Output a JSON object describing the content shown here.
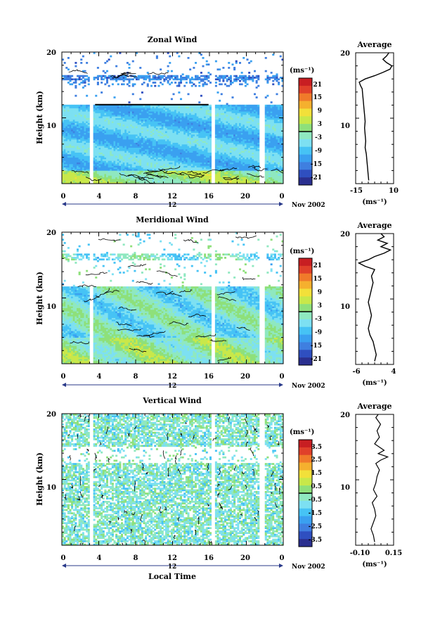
{
  "chart_data": [
    {
      "type": "heatmap",
      "title": "Zonal Wind",
      "ylabel": "Height (km)",
      "xlim": [
        0,
        24
      ],
      "ylim": [
        0,
        20
      ],
      "x_ticks": [
        "0",
        "4",
        "8",
        "12",
        "16",
        "20",
        "0"
      ],
      "y_ticks": [
        "20",
        "10"
      ],
      "date_label": "12",
      "month_label": "Nov 2002",
      "colorbar": {
        "unit": "(ms⁻¹)",
        "ticks": [
          "21",
          "15",
          "9",
          "3",
          "-3",
          "-9",
          "-15",
          "-21"
        ],
        "range": [
          -24,
          24
        ]
      },
      "average": {
        "title": "Average",
        "xlabel": "(ms⁻¹)",
        "x_ticks": [
          "-15",
          "10"
        ],
        "xlim": [
          -20,
          12
        ],
        "y_ticks": [
          "20",
          "10"
        ],
        "profile": [
          [
            -9,
            0.5
          ],
          [
            -9.5,
            1.5
          ],
          [
            -10,
            2.5
          ],
          [
            -10.5,
            3.5
          ],
          [
            -11,
            4.5
          ],
          [
            -12,
            5.5
          ],
          [
            -11.5,
            6.5
          ],
          [
            -12,
            7.5
          ],
          [
            -12.5,
            8.5
          ],
          [
            -12,
            9.5
          ],
          [
            -12.5,
            10.5
          ],
          [
            -13,
            11.5
          ],
          [
            -13.5,
            12.5
          ],
          [
            -14,
            13.5
          ],
          [
            -14.5,
            14.5
          ],
          [
            -16,
            15
          ],
          [
            -17,
            15.5
          ],
          [
            -12,
            16
          ],
          [
            -4,
            16.5
          ],
          [
            3,
            17
          ],
          [
            9,
            17.5
          ],
          [
            10.5,
            18
          ],
          [
            6,
            18.5
          ],
          [
            3,
            19
          ],
          [
            6,
            19.5
          ],
          [
            8,
            20
          ]
        ]
      }
    },
    {
      "type": "heatmap",
      "title": "Meridional Wind",
      "ylabel": "Height (km)",
      "xlim": [
        0,
        24
      ],
      "ylim": [
        0,
        20
      ],
      "x_ticks": [
        "0",
        "4",
        "8",
        "12",
        "16",
        "20",
        "0"
      ],
      "y_ticks": [
        "20",
        "10"
      ],
      "date_label": "12",
      "month_label": "Nov 2002",
      "colorbar": {
        "unit": "(ms⁻¹)",
        "ticks": [
          "21",
          "15",
          "9",
          "3",
          "-3",
          "-9",
          "-15",
          "-21"
        ],
        "range": [
          -24,
          24
        ]
      },
      "average": {
        "title": "Average",
        "xlabel": "(ms⁻¹)",
        "x_ticks": [
          "-6",
          "4"
        ],
        "xlim": [
          -7,
          5
        ],
        "y_ticks": [
          "20",
          "10"
        ],
        "profile": [
          [
            -1,
            0.5
          ],
          [
            -0.5,
            1.5
          ],
          [
            -1,
            2.5
          ],
          [
            -1.5,
            3.5
          ],
          [
            -2.5,
            4.5
          ],
          [
            -3,
            5.5
          ],
          [
            -2.5,
            6.5
          ],
          [
            -2,
            7.5
          ],
          [
            -2.5,
            8.5
          ],
          [
            -3,
            9.5
          ],
          [
            -2.5,
            10.5
          ],
          [
            -2,
            11.5
          ],
          [
            -1.5,
            12.5
          ],
          [
            -2,
            13.5
          ],
          [
            -1,
            14.5
          ],
          [
            -4,
            15
          ],
          [
            -6,
            15.5
          ],
          [
            -3,
            16
          ],
          [
            -1,
            16.5
          ],
          [
            2,
            17
          ],
          [
            4,
            17.5
          ],
          [
            1,
            18
          ],
          [
            3,
            18.5
          ],
          [
            0,
            19
          ],
          [
            2,
            19.5
          ],
          [
            1,
            20
          ]
        ]
      }
    },
    {
      "type": "heatmap",
      "title": "Vertical Wind",
      "ylabel": "Height (km)",
      "xlabel": "Local Time",
      "xlim": [
        0,
        24
      ],
      "ylim": [
        0,
        20
      ],
      "x_ticks": [
        "0",
        "4",
        "8",
        "12",
        "16",
        "20",
        "0"
      ],
      "y_ticks": [
        "20",
        "10"
      ],
      "date_label": "12",
      "month_label": "Nov 2002",
      "colorbar": {
        "unit": "(ms⁻¹)",
        "ticks": [
          "3.5",
          "2.5",
          "1.5",
          "0.5",
          "-0.5",
          "-1.5",
          "-2.5",
          "-3.5"
        ],
        "range": [
          -4,
          4
        ]
      },
      "average": {
        "title": "Average",
        "xlabel": "(ms⁻¹)",
        "x_ticks": [
          "-0.10",
          "0.15"
        ],
        "xlim": [
          -0.15,
          0.17
        ],
        "y_ticks": [
          "20",
          "10"
        ],
        "profile": [
          [
            0.01,
            0.5
          ],
          [
            0.0,
            1.5
          ],
          [
            -0.02,
            2.5
          ],
          [
            0.0,
            3.5
          ],
          [
            0.02,
            4.5
          ],
          [
            0.01,
            5.5
          ],
          [
            -0.01,
            6.5
          ],
          [
            0.03,
            7.5
          ],
          [
            0.0,
            8.5
          ],
          [
            0.02,
            9.5
          ],
          [
            0.03,
            10.5
          ],
          [
            0.05,
            11.5
          ],
          [
            0.02,
            12.5
          ],
          [
            0.06,
            13
          ],
          [
            0.12,
            13.5
          ],
          [
            0.04,
            14
          ],
          [
            0.09,
            14.5
          ],
          [
            0.01,
            15.5
          ],
          [
            0.05,
            16.5
          ],
          [
            0.03,
            17.5
          ],
          [
            0.06,
            18.5
          ],
          [
            0.02,
            19.5
          ],
          [
            0.04,
            20
          ]
        ]
      }
    }
  ]
}
